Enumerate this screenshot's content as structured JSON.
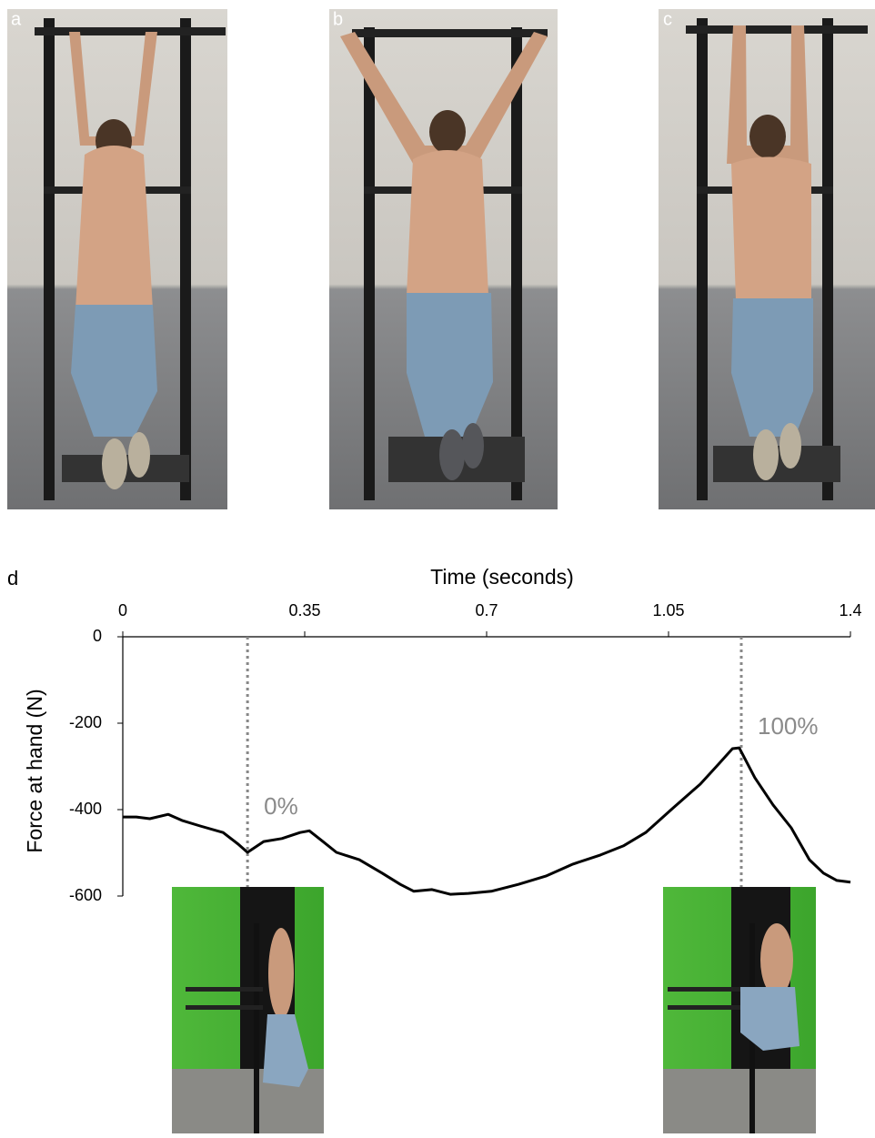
{
  "photo_labels": [
    "a",
    "b",
    "c"
  ],
  "chart_data": {
    "type": "line",
    "panel_label": "d",
    "xlabel": "Time (seconds)",
    "ylabel": "Force at hand (N)",
    "xlim": [
      0,
      1.4
    ],
    "xticks": [
      0,
      0.35,
      0.7,
      1.05,
      1.4
    ],
    "ylim": [
      -600,
      0
    ],
    "yticks": [
      0,
      -200,
      -400,
      -600
    ],
    "color": "#000000",
    "x": [
      0,
      0.026,
      0.052,
      0.0875,
      0.114,
      0.149,
      0.193,
      0.222,
      0.24,
      0.271,
      0.306,
      0.341,
      0.359,
      0.385,
      0.411,
      0.455,
      0.499,
      0.534,
      0.56,
      0.595,
      0.63,
      0.665,
      0.709,
      0.761,
      0.814,
      0.866,
      0.919,
      0.963,
      1.006,
      1.059,
      1.111,
      1.146,
      1.173,
      1.186,
      1.216,
      1.251,
      1.286,
      1.321,
      1.348,
      1.374,
      1.4
    ],
    "values": [
      -417,
      -417,
      -421,
      -411,
      -425,
      -438,
      -453,
      -480,
      -499,
      -474,
      -467,
      -453,
      -449,
      -474,
      -499,
      -516,
      -547,
      -573,
      -589,
      -585,
      -596,
      -594,
      -589,
      -573,
      -554,
      -526,
      -505,
      -484,
      -453,
      -396,
      -341,
      -295,
      -259,
      -257,
      -326,
      -389,
      -442,
      -516,
      -547,
      -564,
      -568
    ],
    "annotations": [
      {
        "text": "0%",
        "x": 0.24
      },
      {
        "text": "100%",
        "x": 1.19
      }
    ]
  }
}
